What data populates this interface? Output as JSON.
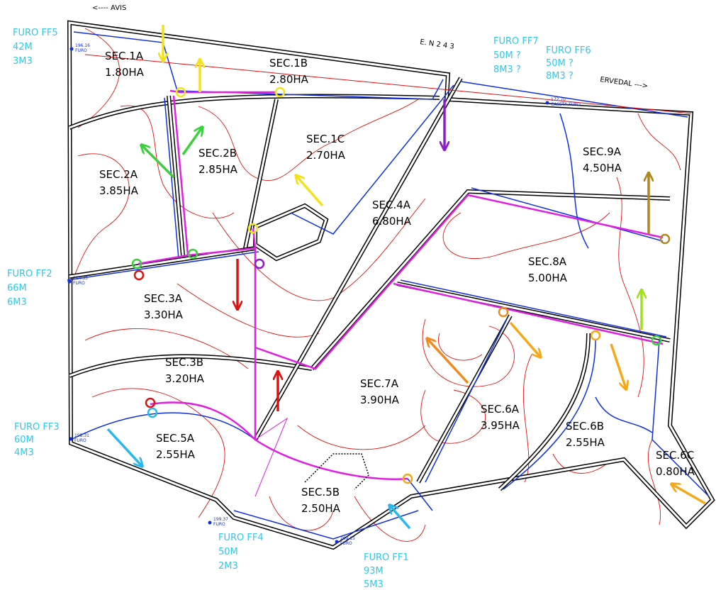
{
  "header_labels": {
    "avis": "<----  AVIS",
    "road": "E.  N   2 4 3",
    "ervedal": "ERVEDAL  --->"
  },
  "sectors": [
    {
      "name": "SEC.1A",
      "area": "1.80HA"
    },
    {
      "name": "SEC.1B",
      "area": "2.80HA"
    },
    {
      "name": "SEC.1C",
      "area": "2.70HA"
    },
    {
      "name": "SEC.2B",
      "area": "2.85HA"
    },
    {
      "name": "SEC.2A",
      "area": "3.85HA"
    },
    {
      "name": "SEC.4A",
      "area": "6.80HA"
    },
    {
      "name": "SEC.9A",
      "area": "4.50HA"
    },
    {
      "name": "SEC.8A",
      "area": "5.00HA"
    },
    {
      "name": "SEC.3A",
      "area": "3.30HA"
    },
    {
      "name": "SEC.3B",
      "area": "3.20HA"
    },
    {
      "name": "SEC.7A",
      "area": "3.90HA"
    },
    {
      "name": "SEC.6A",
      "area": "3.95HA"
    },
    {
      "name": "SEC.6B",
      "area": "2.55HA"
    },
    {
      "name": "SEC.5A",
      "area": "2.55HA"
    },
    {
      "name": "SEC.6C",
      "area": "0.80HA"
    },
    {
      "name": "SEC.5B",
      "area": "2.50HA"
    }
  ],
  "wells": [
    {
      "name": "FURO FF5",
      "depth": "42M",
      "volume": "3M3"
    },
    {
      "name": "FURO FF7",
      "depth": "50M ?",
      "volume": "8M3 ?"
    },
    {
      "name": "FURO FF6",
      "depth": "50M ?",
      "volume": "8M3 ?"
    },
    {
      "name": "FURO FF2",
      "depth": "66M",
      "volume": "6M3"
    },
    {
      "name": "FURO FF3",
      "depth": "60M",
      "volume": "4M3"
    },
    {
      "name": "FURO FF4",
      "depth": "50M",
      "volume": "2M3"
    },
    {
      "name": "FURO FF1",
      "depth": "93M",
      "volume": "5M3"
    }
  ],
  "survey_points": [
    {
      "elevation": "196.16",
      "label": "FURO"
    },
    {
      "elevation": "214.33",
      "label": "FURO"
    },
    {
      "elevation": "198.31",
      "label": "FURO"
    },
    {
      "elevation": "199.37",
      "label": "FURO"
    },
    {
      "elevation": "209.15",
      "label": "FURO"
    },
    {
      "elevation": "172.70",
      "label": "CASETA FURO"
    }
  ]
}
